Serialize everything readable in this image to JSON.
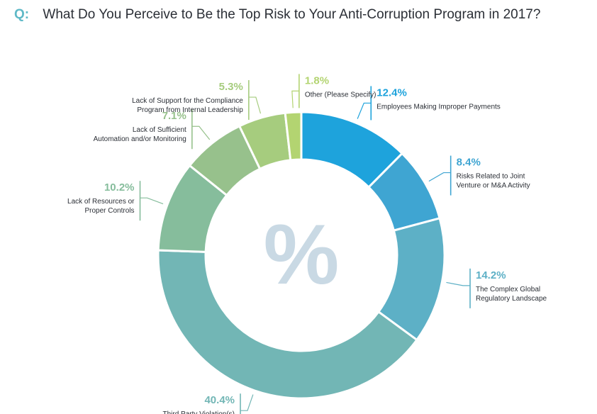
{
  "question": {
    "prefix": "Q:",
    "text": "What Do You Perceive to Be the Top Risk to Your Anti-Corruption Program in 2017?"
  },
  "center_symbol": "%",
  "chart_data": {
    "type": "pie",
    "donut": true,
    "title": "What Do You Perceive to Be the Top Risk to Your Anti-Corruption Program in 2017?",
    "slices": [
      {
        "value": 12.4,
        "label_text": "12.4%",
        "name": "Employees Making Improper Payments",
        "lines": [
          "Employees Making Improper Payments"
        ],
        "color": "#1ea3dc",
        "side": "right"
      },
      {
        "value": 8.4,
        "label_text": "8.4%",
        "name": "Risks Related to Joint Venture or M&A Activity",
        "lines": [
          "Risks Related to Joint",
          "Venture or M&A Activity"
        ],
        "color": "#3fa5d2",
        "side": "right"
      },
      {
        "value": 14.2,
        "label_text": "14.2%",
        "name": "The Complex Global Regulatory Landscape",
        "lines": [
          "The Complex Global",
          "Regulatory Landscape"
        ],
        "color": "#5db0c6",
        "side": "right"
      },
      {
        "value": 40.4,
        "label_text": "40.4%",
        "name": "Third Party Violation(s)",
        "lines": [
          "Third Party Violation(s)"
        ],
        "color": "#72b6b5",
        "side": "left"
      },
      {
        "value": 10.2,
        "label_text": "10.2%",
        "name": "Lack of Resources or Proper Controls",
        "lines": [
          "Lack of Resources or",
          "Proper Controls"
        ],
        "color": "#86bd9c",
        "side": "left"
      },
      {
        "value": 7.1,
        "label_text": "7.1%",
        "name": "Lack of Sufficient Automation and/or Monitoring",
        "lines": [
          "Lack of Sufficient",
          "Automation and/or Monitoring"
        ],
        "color": "#97c18c",
        "side": "left"
      },
      {
        "value": 5.3,
        "label_text": "5.3%",
        "name": "Lack of Support for the Compliance Program from Internal Leadership",
        "lines": [
          "Lack of Support for the Compliance",
          "Program from Internal Leadership"
        ],
        "color": "#a6cc7e",
        "side": "left"
      },
      {
        "value": 1.8,
        "label_text": "1.8%",
        "name": "Other (Please Specify)",
        "lines": [
          "Other (Please Specify)"
        ],
        "color": "#b3d471",
        "side": "right"
      }
    ]
  }
}
